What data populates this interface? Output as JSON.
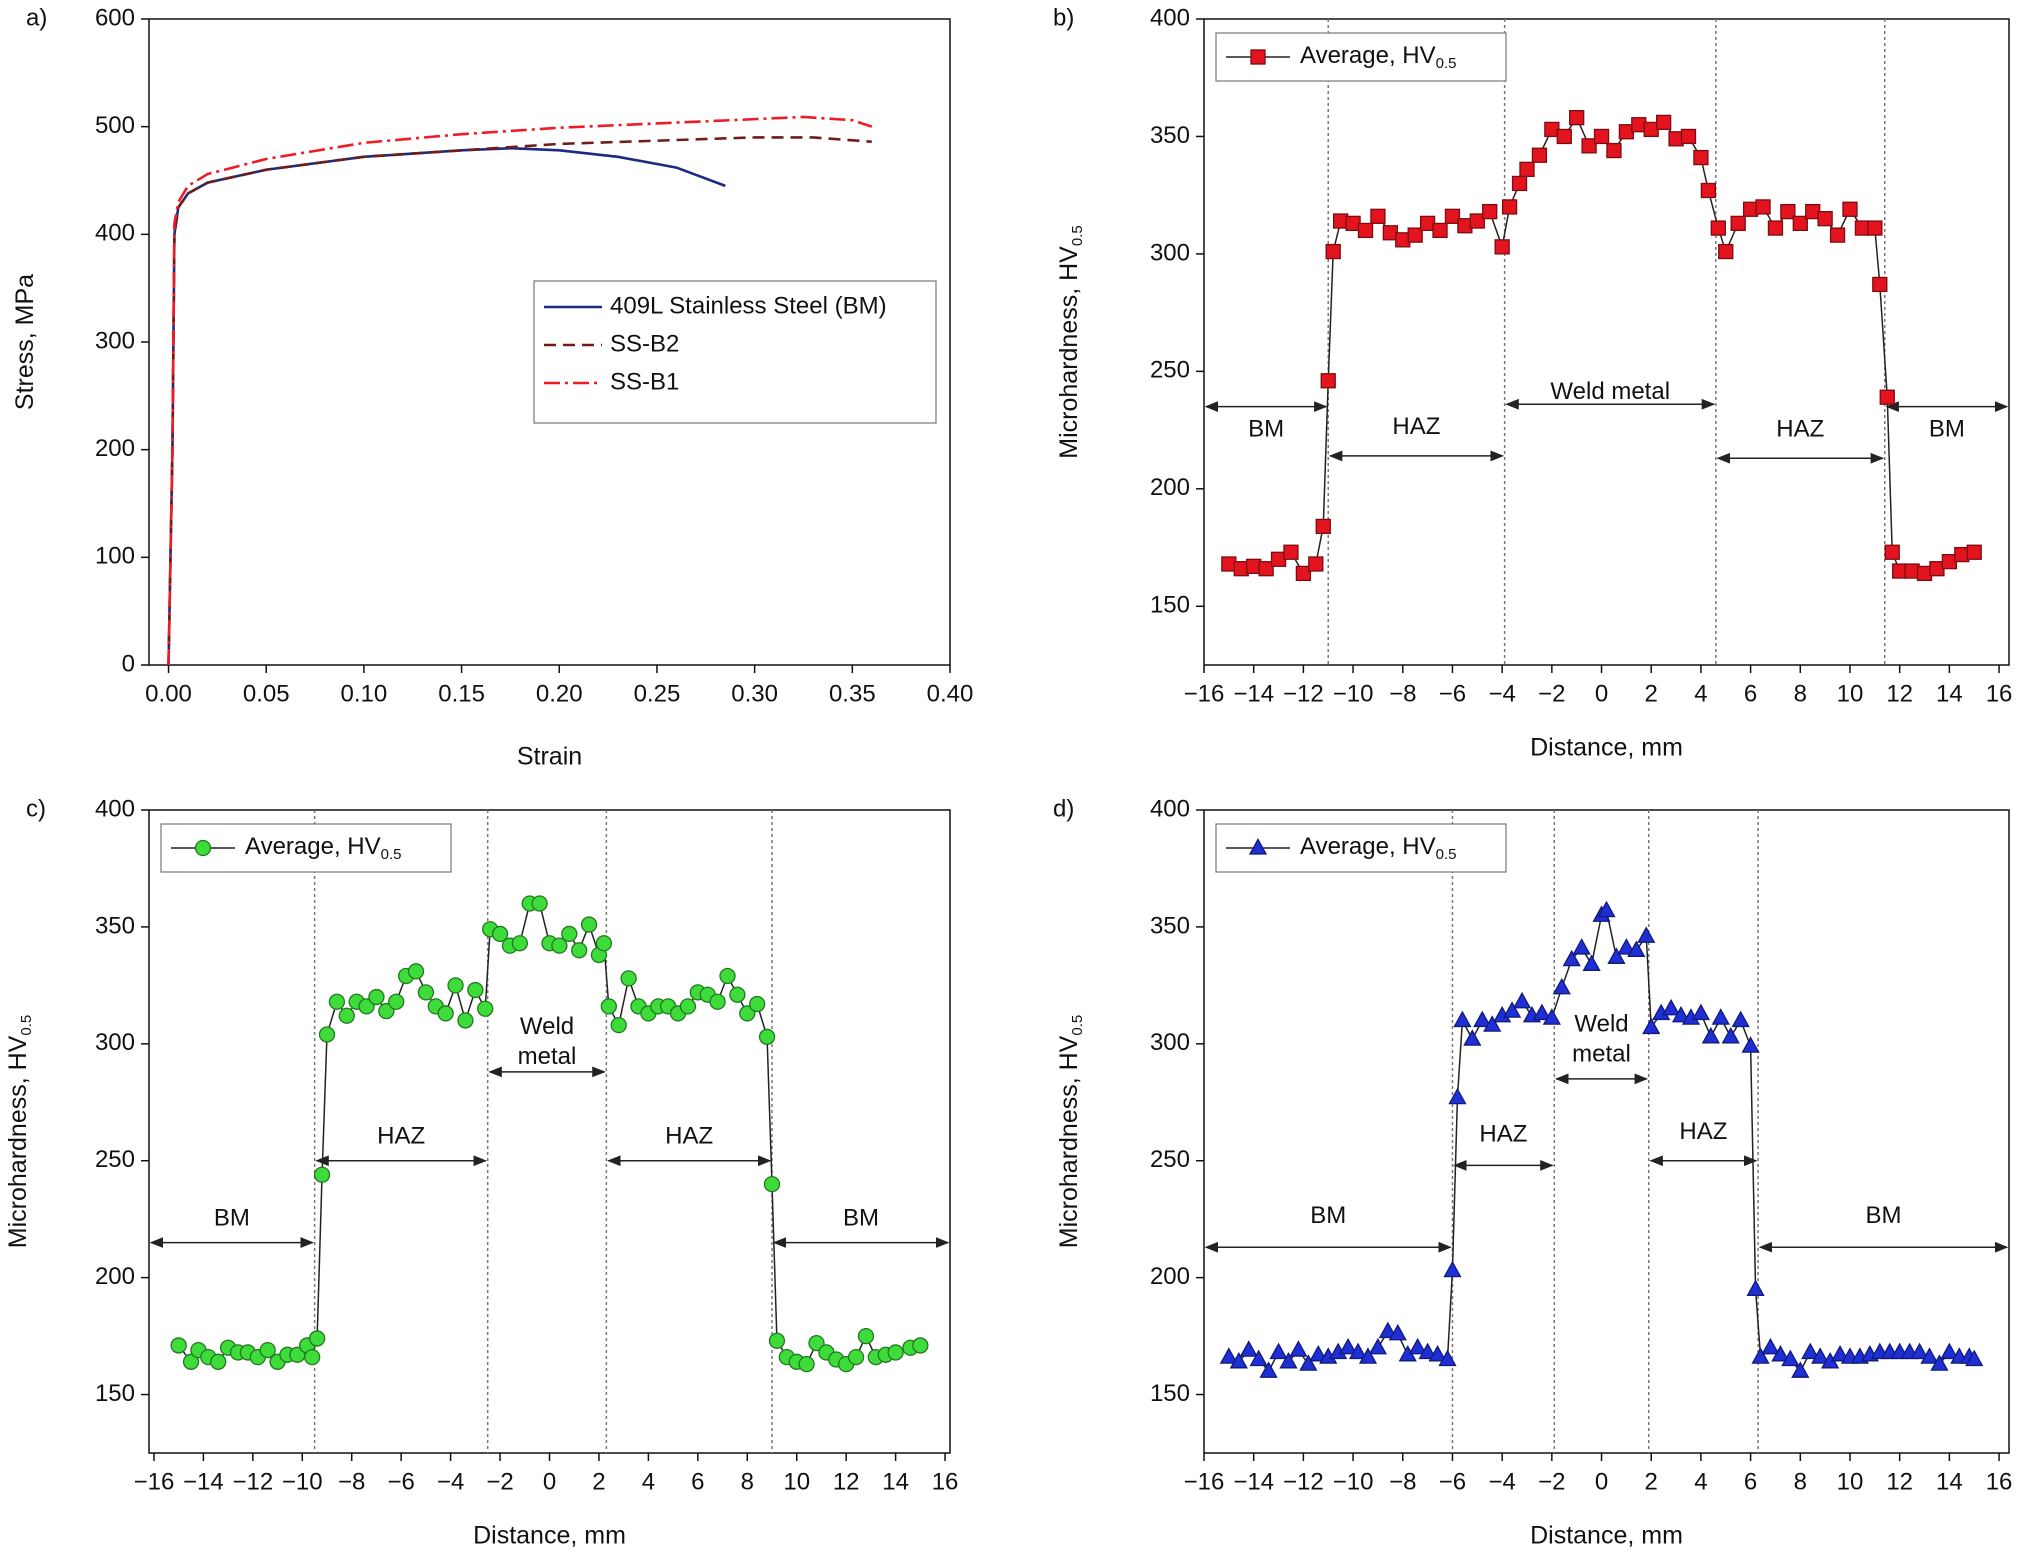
{
  "chart_data": [
    {
      "type": "line",
      "panel": "a)",
      "xlabel": "Strain",
      "ylabel": "Stress, MPa",
      "xlim": [
        -0.01,
        0.4
      ],
      "ylim": [
        0,
        600
      ],
      "xticks": [
        {
          "value": 0,
          "label": "0.00"
        },
        {
          "value": 0.05,
          "label": "0.05"
        },
        {
          "value": 0.1,
          "label": "0.10"
        },
        {
          "value": 0.15,
          "label": "0.15"
        },
        {
          "value": 0.2,
          "label": "0.20"
        },
        {
          "value": 0.25,
          "label": "0.25"
        },
        {
          "value": 0.3,
          "label": "0.30"
        },
        {
          "value": 0.35,
          "label": "0.35"
        },
        {
          "value": 0.4,
          "label": "0.40"
        }
      ],
      "yticks": [
        0,
        100,
        200,
        300,
        400,
        500,
        600
      ],
      "legend": "center right",
      "series": [
        {
          "name": "409L Stainless Steel (BM)",
          "color": "#1c2a80",
          "dash": "solid",
          "x": [
            0,
            0.002,
            0.003,
            0.005,
            0.01,
            0.02,
            0.05,
            0.1,
            0.15,
            0.175,
            0.2,
            0.23,
            0.26,
            0.285
          ],
          "values": [
            0,
            200,
            400,
            425,
            438,
            448,
            460,
            472,
            478,
            480,
            478,
            472,
            462,
            445
          ]
        },
        {
          "name": "SS-B2",
          "color": "#6e1d1a",
          "dash": "dashed",
          "x": [
            0,
            0.002,
            0.003,
            0.005,
            0.01,
            0.02,
            0.05,
            0.1,
            0.15,
            0.175,
            0.2,
            0.25,
            0.3,
            0.33,
            0.36
          ],
          "values": [
            0,
            200,
            400,
            425,
            438,
            448,
            460,
            472,
            478,
            481,
            484,
            487,
            490,
            490,
            486
          ]
        },
        {
          "name": "SS-B1",
          "color": "#ee1c25",
          "dash": "dashdot",
          "x": [
            0,
            0.002,
            0.003,
            0.005,
            0.01,
            0.02,
            0.05,
            0.1,
            0.15,
            0.2,
            0.25,
            0.3,
            0.325,
            0.35,
            0.36
          ],
          "values": [
            0,
            200,
            410,
            430,
            445,
            456,
            470,
            485,
            493,
            499,
            503,
            507,
            509,
            506,
            500
          ]
        }
      ]
    },
    {
      "type": "line",
      "panel": "b)",
      "xlabel": "Distance, mm",
      "ylabel": "Microhardness, HV",
      "ylabel_sub": "0.5",
      "xlim": [
        -16,
        16.4
      ],
      "ylim": [
        125,
        400
      ],
      "xticks": [
        {
          "value": -16,
          "label": "−16"
        },
        {
          "value": -14,
          "label": "−14"
        },
        {
          "value": -12,
          "label": "−12"
        },
        {
          "value": -10,
          "label": "−10"
        },
        {
          "value": -8,
          "label": "−8"
        },
        {
          "value": -6,
          "label": "−6"
        },
        {
          "value": -4,
          "label": "−4"
        },
        {
          "value": -2,
          "label": "−2"
        },
        0,
        2,
        4,
        6,
        8,
        10,
        12,
        14,
        16
      ],
      "yticks": [
        150,
        200,
        250,
        300,
        350,
        400
      ],
      "legend": "upper left",
      "boundaries": [
        -11,
        -3.9,
        4.6,
        11.4
      ],
      "regions": [
        {
          "lines": [
            "BM"
          ],
          "y": 235,
          "label_y": 225
        },
        {
          "lines": [
            "HAZ"
          ],
          "y": 214,
          "label_y": 226
        },
        {
          "lines": [
            "Weld metal"
          ],
          "y": 236,
          "label_y": 241
        },
        {
          "lines": [
            "HAZ"
          ],
          "y": 213,
          "label_y": 225
        },
        {
          "lines": [
            "BM"
          ],
          "y": 235,
          "label_y": 225
        }
      ],
      "series": [
        {
          "name": "Average, HV",
          "name_sub": "0.5",
          "color": "#e3141e",
          "marker": "square",
          "x": [
            -15,
            -14.5,
            -14,
            -13.5,
            -13,
            -12.5,
            -12,
            -11.5,
            -11.2,
            -11,
            -10.8,
            -10.5,
            -10,
            -9.5,
            -9,
            -8.5,
            -8,
            -7.5,
            -7,
            -6.5,
            -6,
            -5.5,
            -5,
            -4.5,
            -4,
            -3.7,
            -3.3,
            -3,
            -2.5,
            -2,
            -1.5,
            -1,
            -0.5,
            0,
            0.5,
            1,
            1.5,
            2,
            2.5,
            3,
            3.5,
            4,
            4.3,
            4.7,
            5,
            5.5,
            6,
            6.5,
            7,
            7.5,
            8,
            8.5,
            9,
            9.5,
            10,
            10.5,
            11,
            11.2,
            11.5,
            11.7,
            12,
            12.5,
            13,
            13.5,
            14,
            14.5,
            15
          ],
          "values": [
            168,
            166,
            167,
            166,
            170,
            173,
            164,
            168,
            184,
            246,
            301,
            314,
            313,
            310,
            316,
            309,
            306,
            308,
            313,
            310,
            316,
            312,
            314,
            318,
            303,
            320,
            330,
            336,
            342,
            353,
            350,
            358,
            346,
            350,
            344,
            352,
            355,
            353,
            356,
            349,
            350,
            341,
            327,
            311,
            301,
            313,
            319,
            320,
            311,
            318,
            313,
            318,
            315,
            308,
            319,
            311,
            311,
            287,
            239,
            173,
            165,
            165,
            164,
            166,
            169,
            172,
            173
          ]
        }
      ]
    },
    {
      "type": "line",
      "panel": "c)",
      "xlabel": "Distance, mm",
      "ylabel": "Microhardness, HV",
      "ylabel_sub": "0.5",
      "xlim": [
        -16.2,
        16.2
      ],
      "ylim": [
        125,
        400
      ],
      "xticks": [
        {
          "value": -16,
          "label": "−16"
        },
        {
          "value": -14,
          "label": "−14"
        },
        {
          "value": -12,
          "label": "−12"
        },
        {
          "value": -10,
          "label": "−10"
        },
        {
          "value": -8,
          "label": "−8"
        },
        {
          "value": -6,
          "label": "−6"
        },
        {
          "value": -4,
          "label": "−4"
        },
        {
          "value": -2,
          "label": "−2"
        },
        0,
        2,
        4,
        6,
        8,
        10,
        12,
        14,
        16
      ],
      "yticks": [
        150,
        200,
        250,
        300,
        350,
        400
      ],
      "legend": "upper left",
      "boundaries": [
        -9.5,
        -2.5,
        2.3,
        9
      ],
      "regions": [
        {
          "lines": [
            "BM"
          ],
          "y": 215,
          "label_y": 225
        },
        {
          "lines": [
            "HAZ"
          ],
          "y": 250,
          "label_y": 260
        },
        {
          "lines": [
            "Weld",
            "metal"
          ],
          "y": 288,
          "label_y": 307
        },
        {
          "lines": [
            "HAZ"
          ],
          "y": 250,
          "label_y": 260
        },
        {
          "lines": [
            "BM"
          ],
          "y": 215,
          "label_y": 225
        }
      ],
      "series": [
        {
          "name": "Average, HV",
          "name_sub": "0.5",
          "color": "#3ddc3a",
          "marker": "circle",
          "x": [
            -15,
            -14.5,
            -14.2,
            -13.8,
            -13.4,
            -13,
            -12.6,
            -12.2,
            -11.8,
            -11.4,
            -11,
            -10.6,
            -10.2,
            -9.8,
            -9.6,
            -9.4,
            -9.2,
            -9,
            -8.6,
            -8.2,
            -7.8,
            -7.4,
            -7,
            -6.6,
            -6.2,
            -5.8,
            -5.4,
            -5,
            -4.6,
            -4.2,
            -3.8,
            -3.4,
            -3,
            -2.6,
            -2.4,
            -2,
            -1.6,
            -1.2,
            -0.8,
            -0.4,
            0,
            0.4,
            0.8,
            1.2,
            1.6,
            2,
            2.2,
            2.4,
            2.8,
            3.2,
            3.6,
            4,
            4.4,
            4.8,
            5.2,
            5.6,
            6,
            6.4,
            6.8,
            7.2,
            7.6,
            8,
            8.4,
            8.8,
            9,
            9.2,
            9.6,
            10,
            10.4,
            10.8,
            11.2,
            11.6,
            12,
            12.4,
            12.8,
            13.2,
            13.6,
            14,
            14.6,
            15
          ],
          "values": [
            171,
            164,
            169,
            166,
            164,
            170,
            168,
            168,
            166,
            169,
            164,
            167,
            167,
            171,
            166,
            174,
            244,
            304,
            318,
            312,
            318,
            316,
            320,
            314,
            318,
            329,
            331,
            322,
            316,
            313,
            325,
            310,
            323,
            315,
            349,
            347,
            342,
            343,
            360,
            360,
            343,
            342,
            347,
            340,
            351,
            338,
            343,
            316,
            308,
            328,
            316,
            313,
            316,
            316,
            313,
            316,
            322,
            321,
            318,
            329,
            321,
            313,
            317,
            303,
            240,
            173,
            166,
            164,
            163,
            172,
            168,
            165,
            163,
            166,
            175,
            166,
            167,
            168,
            170,
            171
          ]
        }
      ]
    },
    {
      "type": "line",
      "panel": "d)",
      "xlabel": "Distance, mm",
      "ylabel": "Microhardness, HV",
      "ylabel_sub": "0.5",
      "xlim": [
        -16,
        16.4
      ],
      "ylim": [
        125,
        400
      ],
      "xticks": [
        {
          "value": -16,
          "label": "−16"
        },
        {
          "value": -14,
          "label": "−14"
        },
        {
          "value": -12,
          "label": "−12"
        },
        {
          "value": -10,
          "label": "−10"
        },
        {
          "value": -8,
          "label": "−8"
        },
        {
          "value": -6,
          "label": "−6"
        },
        {
          "value": -4,
          "label": "−4"
        },
        {
          "value": -2,
          "label": "−2"
        },
        0,
        2,
        4,
        6,
        8,
        10,
        12,
        14,
        16
      ],
      "yticks": [
        150,
        200,
        250,
        300,
        350,
        400
      ],
      "legend": "upper left",
      "boundaries": [
        -6,
        -1.9,
        1.9,
        6.3
      ],
      "regions": [
        {
          "lines": [
            "BM"
          ],
          "y": 213,
          "label_y": 226
        },
        {
          "lines": [
            "HAZ"
          ],
          "y": 248,
          "label_y": 261
        },
        {
          "lines": [
            "Weld",
            "metal"
          ],
          "y": 285,
          "label_y": 308
        },
        {
          "lines": [
            "HAZ"
          ],
          "y": 250,
          "label_y": 262
        },
        {
          "lines": [
            "BM"
          ],
          "y": 213,
          "label_y": 226
        }
      ],
      "series": [
        {
          "name": "Average, HV",
          "name_sub": "0.5",
          "color": "#1f2fd6",
          "marker": "triangle",
          "x": [
            -15,
            -14.6,
            -14.2,
            -13.8,
            -13.4,
            -13,
            -12.6,
            -12.2,
            -11.8,
            -11.4,
            -11,
            -10.6,
            -10.2,
            -9.8,
            -9.4,
            -9,
            -8.6,
            -8.2,
            -7.8,
            -7.4,
            -7,
            -6.6,
            -6.2,
            -6,
            -5.8,
            -5.6,
            -5.2,
            -4.8,
            -4.4,
            -4,
            -3.6,
            -3.2,
            -2.8,
            -2.4,
            -2,
            -1.6,
            -1.2,
            -0.8,
            -0.4,
            0,
            0.2,
            0.6,
            1,
            1.4,
            1.8,
            2,
            2.4,
            2.8,
            3.2,
            3.6,
            4,
            4.4,
            4.8,
            5.2,
            5.6,
            6,
            6.2,
            6.4,
            6.8,
            7.2,
            7.6,
            8,
            8.4,
            8.8,
            9.2,
            9.6,
            10,
            10.4,
            10.8,
            11.2,
            11.6,
            12,
            12.4,
            12.8,
            13.2,
            13.6,
            14,
            14.4,
            14.8,
            15
          ],
          "values": [
            166,
            164,
            169,
            165,
            160,
            168,
            164,
            169,
            163,
            167,
            166,
            168,
            170,
            168,
            166,
            170,
            177,
            176,
            167,
            170,
            168,
            167,
            165,
            203,
            277,
            310,
            302,
            310,
            308,
            312,
            314,
            318,
            312,
            313,
            311,
            324,
            336,
            341,
            334,
            355,
            357,
            337,
            341,
            340,
            346,
            307,
            313,
            315,
            312,
            311,
            313,
            303,
            311,
            303,
            310,
            299,
            195,
            166,
            170,
            167,
            165,
            160,
            168,
            166,
            164,
            167,
            166,
            166,
            167,
            168,
            168,
            168,
            168,
            168,
            166,
            163,
            168,
            166,
            166,
            165
          ]
        }
      ]
    }
  ]
}
